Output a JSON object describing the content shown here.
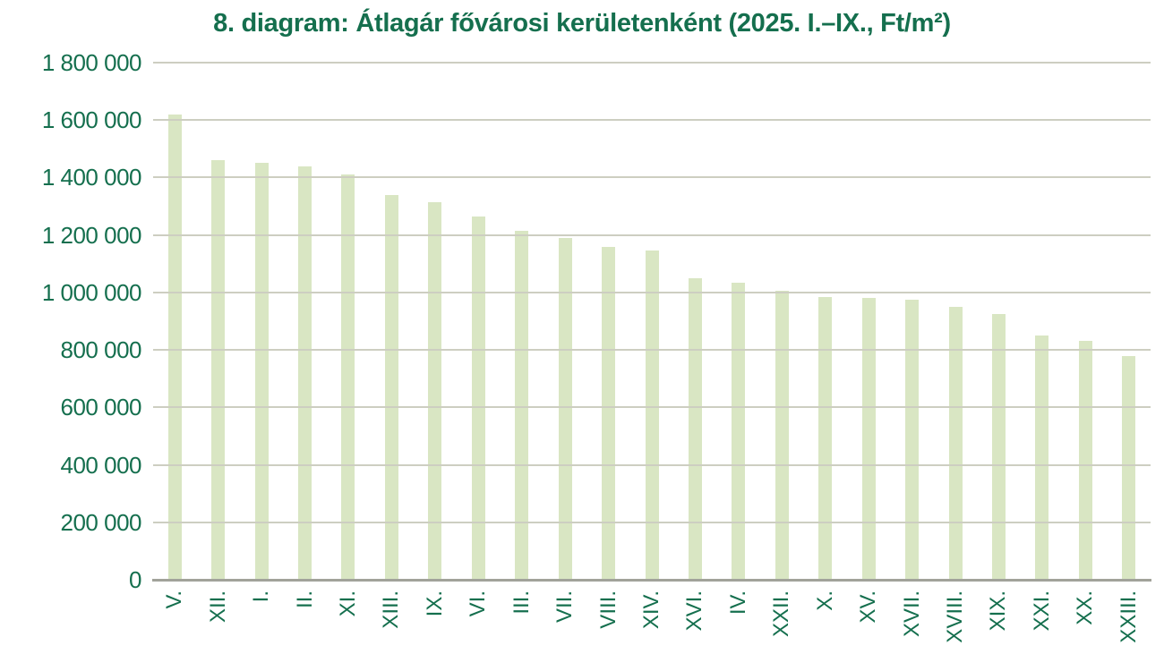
{
  "chart": {
    "title": "8. diagram: Átlagár fővárosi kerületenként (2025. I.–IX., Ft/m²)",
    "colors": {
      "text_green": "#156f4e",
      "bar_fill": "#d9e6c3",
      "gridline": "#cdcec1",
      "axis_line": "#a1a29a",
      "background": "#ffffff"
    }
  },
  "chart_data": {
    "type": "bar",
    "title": "8. diagram: Átlagár fővárosi kerületenként (2025. I.–IX., Ft/m²)",
    "xlabel": "",
    "ylabel": "",
    "ylim": [
      0,
      1800000
    ],
    "ytick_step": 200000,
    "grid": "horizontal",
    "legend": false,
    "categories": [
      "V.",
      "XII.",
      "I.",
      "II.",
      "XI.",
      "XIII.",
      "IX.",
      "VI.",
      "III.",
      "VII.",
      "VIII.",
      "XIV.",
      "XVI.",
      "IV.",
      "XXII.",
      "X.",
      "XV.",
      "XVII.",
      "XVIII.",
      "XIX.",
      "XXI.",
      "XX.",
      "XXIII."
    ],
    "values": [
      1620000,
      1460000,
      1450000,
      1440000,
      1410000,
      1340000,
      1315000,
      1265000,
      1215000,
      1190000,
      1160000,
      1145000,
      1050000,
      1035000,
      1005000,
      985000,
      980000,
      975000,
      950000,
      925000,
      850000,
      830000,
      780000
    ],
    "yticks": [
      {
        "value": 0,
        "label": "0"
      },
      {
        "value": 200000,
        "label": "200 000"
      },
      {
        "value": 400000,
        "label": "400 000"
      },
      {
        "value": 600000,
        "label": "600 000"
      },
      {
        "value": 800000,
        "label": "800 000"
      },
      {
        "value": 1000000,
        "label": "1 000 000"
      },
      {
        "value": 1200000,
        "label": "1 200 000"
      },
      {
        "value": 1400000,
        "label": "1 400 000"
      },
      {
        "value": 1600000,
        "label": "1 600 000"
      },
      {
        "value": 1800000,
        "label": "1 800 000"
      }
    ]
  }
}
